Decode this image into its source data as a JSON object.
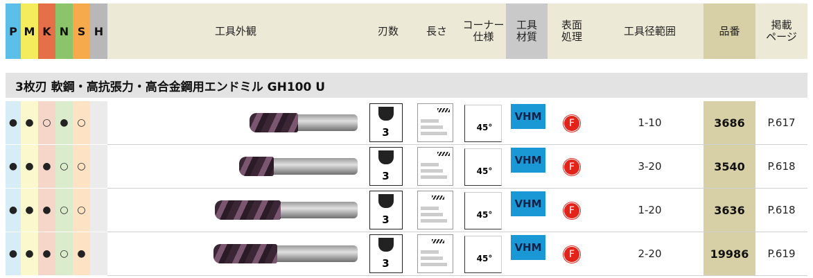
{
  "header": {
    "materials": [
      "P",
      "M",
      "K",
      "N",
      "S",
      "H"
    ],
    "columns": [
      [
        "工具外観"
      ],
      [
        "刃数"
      ],
      [
        "長さ"
      ],
      [
        "コーナー",
        "仕様"
      ],
      [
        "工具",
        "材質"
      ],
      [
        "表面",
        "処理"
      ],
      [
        "工具径範囲"
      ],
      [
        "品番"
      ],
      [
        "掲載",
        "ページ"
      ]
    ]
  },
  "section": {
    "title": "3枚刃 軟鋼・高抗張力・高合金鋼用エンドミル GH100 U"
  },
  "rows": [
    {
      "materials": [
        "●",
        "●",
        "○",
        "●",
        "○"
      ],
      "flutes": "3",
      "corner": "45°",
      "tool_material": "VHM",
      "coating": "F",
      "range": "1-10",
      "part_number": "3686",
      "page": "P.617"
    },
    {
      "materials": [
        "●",
        "●",
        "●",
        "○",
        "○"
      ],
      "flutes": "3",
      "corner": "45°",
      "tool_material": "VHM",
      "coating": "F",
      "range": "3-20",
      "part_number": "3540",
      "page": "P.618"
    },
    {
      "materials": [
        "●",
        "●",
        "●",
        "○",
        "○"
      ],
      "flutes": "3",
      "corner": "45°",
      "tool_material": "VHM",
      "coating": "F",
      "range": "1-20",
      "part_number": "3636",
      "page": "P.618"
    },
    {
      "materials": [
        "●",
        "●",
        "●",
        "○",
        "●"
      ],
      "flutes": "3",
      "corner": "45°",
      "tool_material": "VHM",
      "coating": "F",
      "range": "2-20",
      "part_number": "19986",
      "page": "P.619"
    }
  ]
}
